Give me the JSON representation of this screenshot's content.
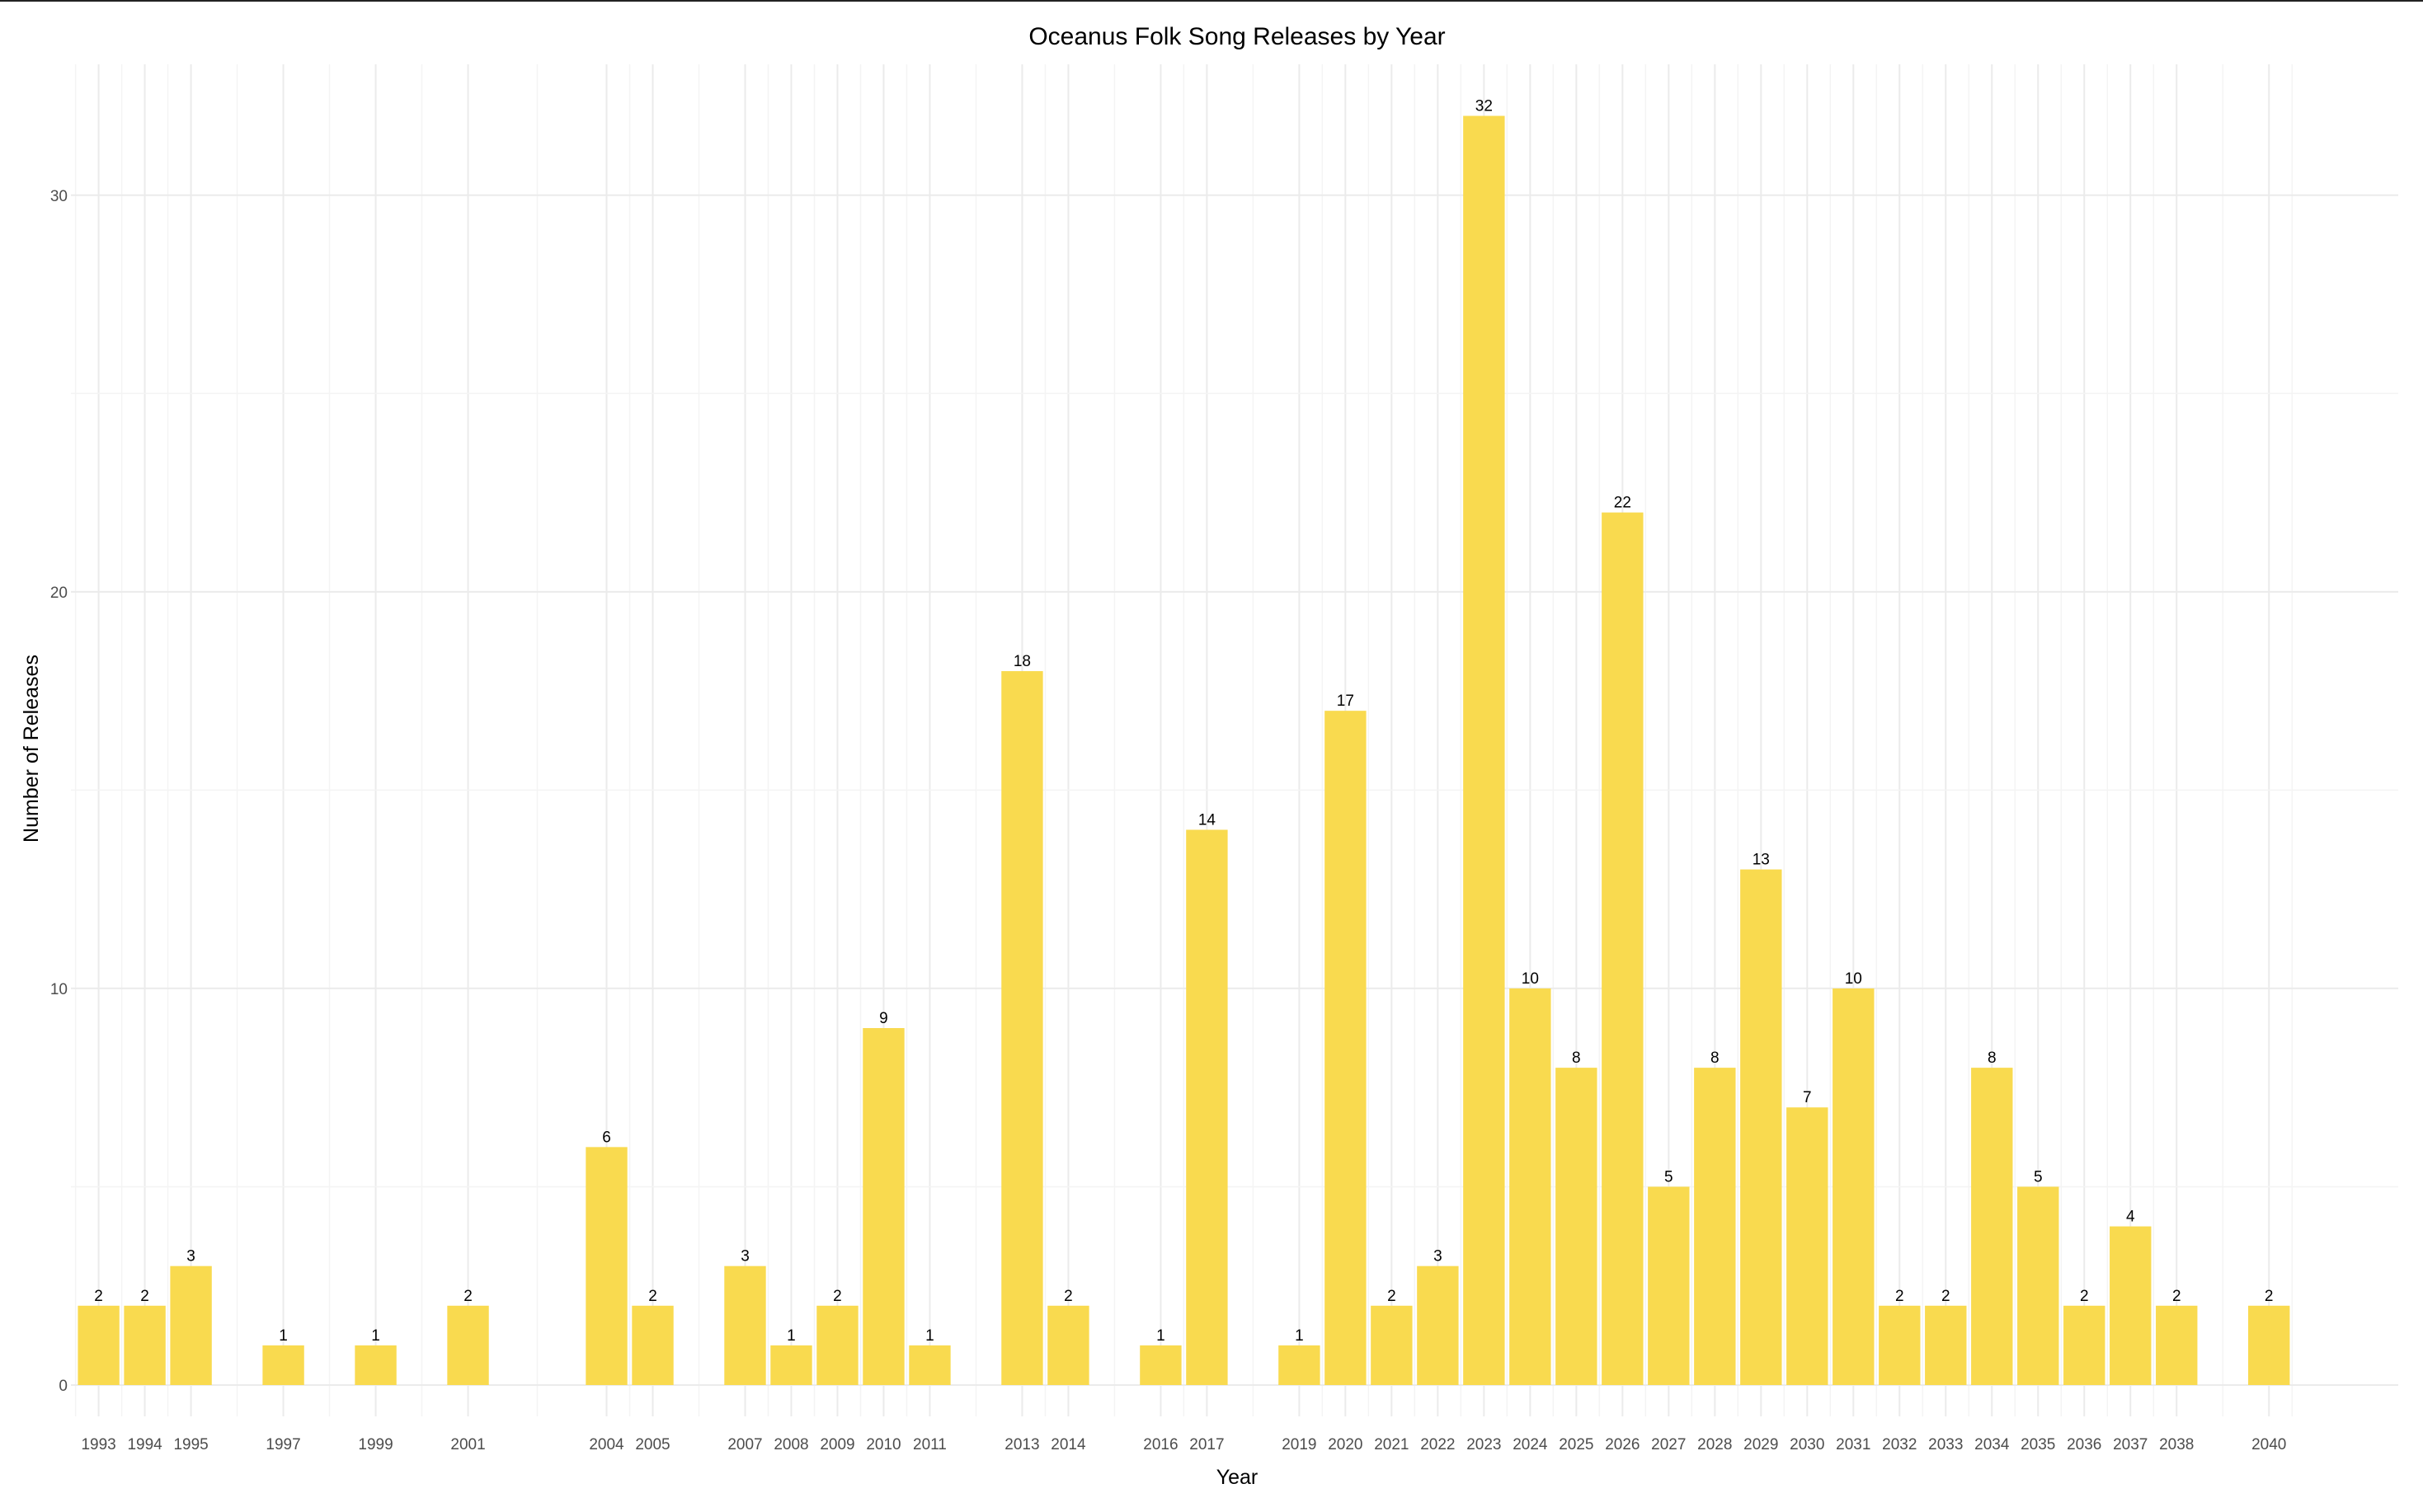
{
  "chart_data": {
    "type": "bar",
    "title": "Oceanus Folk Song Releases by Year",
    "xlabel": "Year",
    "ylabel": "Number of Releases",
    "categories": [
      "1993",
      "1994",
      "1995",
      "1997",
      "1999",
      "2001",
      "2004",
      "2005",
      "2007",
      "2008",
      "2009",
      "2010",
      "2011",
      "2013",
      "2014",
      "2016",
      "2017",
      "2019",
      "2020",
      "2021",
      "2022",
      "2023",
      "2024",
      "2025",
      "2026",
      "2027",
      "2028",
      "2029",
      "2030",
      "2031",
      "2032",
      "2033",
      "2034",
      "2035",
      "2036",
      "2037",
      "2038",
      "2040"
    ],
    "x": [
      1993,
      1994,
      1995,
      1997,
      1999,
      2001,
      2004,
      2005,
      2007,
      2008,
      2009,
      2010,
      2011,
      2013,
      2014,
      2016,
      2017,
      2019,
      2020,
      2021,
      2022,
      2023,
      2024,
      2025,
      2026,
      2027,
      2028,
      2029,
      2030,
      2031,
      2032,
      2033,
      2034,
      2035,
      2036,
      2037,
      2038,
      2040
    ],
    "values": [
      2,
      2,
      3,
      1,
      1,
      2,
      6,
      2,
      3,
      1,
      2,
      9,
      1,
      18,
      2,
      1,
      14,
      1,
      17,
      2,
      3,
      32,
      10,
      8,
      22,
      5,
      8,
      13,
      7,
      10,
      2,
      2,
      8,
      5,
      2,
      4,
      2,
      2
    ],
    "xlim": [
      1992.4,
      2042.8
    ],
    "ylim": [
      0,
      33.3
    ],
    "yticks": [
      0,
      10,
      20,
      30
    ],
    "grid": true,
    "legend": "none",
    "bar_color": "#F9DA4F",
    "grid_color": "#EBEBEB",
    "minor_grid_color": "#F4F4F4",
    "text_color": "#000000",
    "tick_color": "#4D4D4D"
  }
}
